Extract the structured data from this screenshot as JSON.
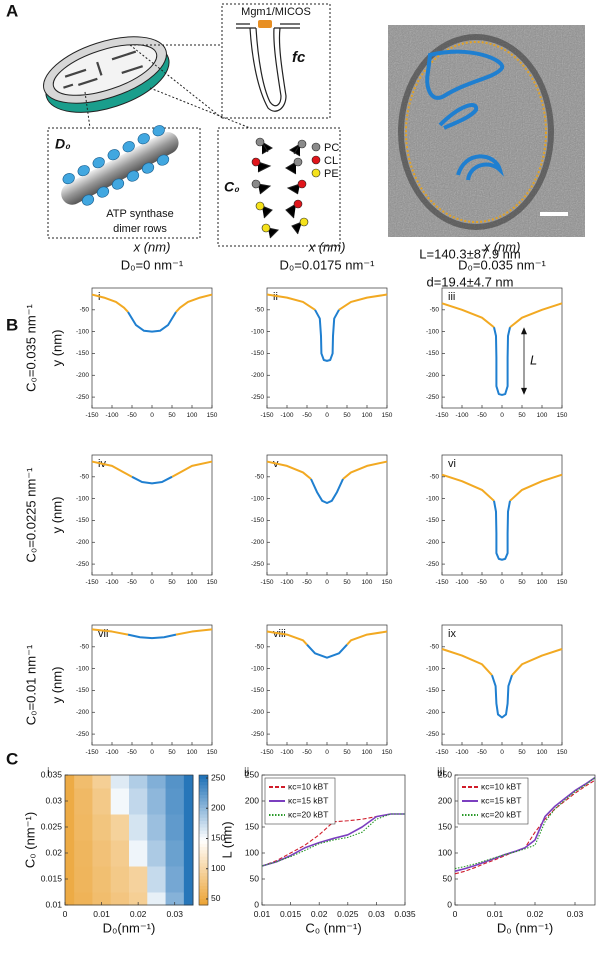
{
  "panel_a": {
    "label": "A",
    "fc_title": "Mgm1/MICOS",
    "fc": "fc",
    "d0": "D₀",
    "atp": [
      "ATP synthase",
      "dimer rows"
    ],
    "c0": "C₀",
    "lipids": [
      "PC",
      "CL",
      "PE"
    ],
    "stats": [
      "L=140.3±87.9 nm",
      "d=19.4±4.7 nm"
    ]
  },
  "panel_b": {
    "label": "B"
  },
  "panel_c": {
    "label": "C"
  },
  "chart_data": [
    {
      "type": "line",
      "panel": "i",
      "xlabel": "x (nm)",
      "title": "D₀=0 nm⁻¹",
      "ylabel": "y (nm)",
      "row_label": "C₀=0.035 nm⁻¹",
      "xlim": [
        -150,
        150
      ],
      "xticks": [
        -150,
        -100,
        -50,
        0,
        50,
        100,
        150
      ],
      "ylim": [
        -275,
        0
      ],
      "yticks": [
        -250,
        -200,
        -150,
        -100,
        -50
      ],
      "series": [
        {
          "color": "#f2a922",
          "x": [
            -150,
            -120,
            -90,
            -70,
            -60,
            null,
            60,
            70,
            90,
            120,
            150
          ],
          "values": [
            -15,
            -22,
            -32,
            -45,
            -55,
            null,
            -55,
            -45,
            -32,
            -22,
            -15
          ]
        },
        {
          "color": "#1f7fd0",
          "x": [
            -60,
            -40,
            -20,
            0,
            20,
            40,
            60
          ],
          "values": [
            -55,
            -85,
            -98,
            -100,
            -98,
            -85,
            -55
          ]
        }
      ]
    },
    {
      "type": "line",
      "panel": "ii",
      "xlabel": "x (nm)",
      "title": "D₀=0.0175 nm⁻¹",
      "xlim": [
        -150,
        150
      ],
      "xticks": [
        -150,
        -100,
        -50,
        0,
        50,
        100,
        150
      ],
      "ylim": [
        -275,
        0
      ],
      "yticks": [
        -250,
        -200,
        -150,
        -100,
        -50
      ],
      "series": [
        {
          "color": "#f2a922",
          "x": [
            -150,
            -100,
            -60,
            -30,
            null,
            30,
            60,
            100,
            150
          ],
          "values": [
            -15,
            -22,
            -32,
            -50,
            null,
            -50,
            -32,
            -22,
            -15
          ]
        },
        {
          "color": "#1f7fd0",
          "x": [
            -30,
            -18,
            -15,
            -14,
            -8,
            0,
            8,
            14,
            15,
            18,
            30
          ],
          "values": [
            -50,
            -70,
            -110,
            -150,
            -165,
            -167,
            -165,
            -150,
            -110,
            -70,
            -50
          ]
        }
      ]
    },
    {
      "type": "line",
      "panel": "iii",
      "xlabel": "x (nm)",
      "title": "D₀=0.035 nm⁻¹",
      "annotation": "L",
      "xlim": [
        -150,
        150
      ],
      "xticks": [
        -150,
        -100,
        -50,
        0,
        50,
        100,
        150
      ],
      "ylim": [
        -275,
        0
      ],
      "yticks": [
        -250,
        -200,
        -150,
        -100,
        -50
      ],
      "series": [
        {
          "color": "#f2a922",
          "x": [
            -150,
            -100,
            -50,
            -20,
            null,
            20,
            50,
            100,
            150
          ],
          "values": [
            -35,
            -50,
            -68,
            -90,
            null,
            -90,
            -68,
            -50,
            -35
          ]
        },
        {
          "color": "#1f7fd0",
          "x": [
            -20,
            -15,
            -14,
            -14,
            -8,
            0,
            8,
            14,
            14,
            15,
            20
          ],
          "values": [
            -90,
            -110,
            -160,
            -225,
            -243,
            -245,
            -243,
            -225,
            -160,
            -110,
            -90
          ]
        }
      ]
    },
    {
      "type": "line",
      "panel": "iv",
      "ylabel": "y (nm)",
      "row_label": "C₀=0.0225 nm⁻¹",
      "xlim": [
        -150,
        150
      ],
      "xticks": [
        -150,
        -100,
        -50,
        0,
        50,
        100,
        150
      ],
      "ylim": [
        -275,
        0
      ],
      "yticks": [
        -250,
        -200,
        -150,
        -100,
        -50
      ],
      "series": [
        {
          "color": "#f2a922",
          "x": [
            -150,
            -100,
            -70,
            -50,
            null,
            50,
            70,
            100,
            150
          ],
          "values": [
            -15,
            -25,
            -40,
            -50,
            null,
            -50,
            -40,
            -25,
            -15
          ]
        },
        {
          "color": "#1f7fd0",
          "x": [
            -50,
            -25,
            0,
            25,
            50
          ],
          "values": [
            -50,
            -62,
            -65,
            -62,
            -50
          ]
        }
      ]
    },
    {
      "type": "line",
      "panel": "v",
      "xlim": [
        -150,
        150
      ],
      "xticks": [
        -150,
        -100,
        -50,
        0,
        50,
        100,
        150
      ],
      "ylim": [
        -275,
        0
      ],
      "yticks": [
        -250,
        -200,
        -150,
        -100,
        -50
      ],
      "series": [
        {
          "color": "#f2a922",
          "x": [
            -150,
            -100,
            -60,
            -40,
            null,
            40,
            60,
            100,
            150
          ],
          "values": [
            -15,
            -25,
            -40,
            -55,
            null,
            -55,
            -40,
            -25,
            -15
          ]
        },
        {
          "color": "#1f7fd0",
          "x": [
            -40,
            -25,
            -12,
            0,
            12,
            25,
            40
          ],
          "values": [
            -55,
            -85,
            -105,
            -110,
            -105,
            -85,
            -55
          ]
        }
      ]
    },
    {
      "type": "line",
      "panel": "vi",
      "xlim": [
        -150,
        150
      ],
      "xticks": [
        -150,
        -100,
        -50,
        0,
        50,
        100,
        150
      ],
      "ylim": [
        -275,
        0
      ],
      "yticks": [
        -250,
        -200,
        -150,
        -100,
        -50
      ],
      "series": [
        {
          "color": "#f2a922",
          "x": [
            -150,
            -100,
            -50,
            -20,
            null,
            20,
            50,
            100,
            150
          ],
          "values": [
            -45,
            -60,
            -80,
            -105,
            null,
            -105,
            -80,
            -60,
            -45
          ]
        },
        {
          "color": "#1f7fd0",
          "x": [
            -20,
            -15,
            -14,
            -14,
            -8,
            0,
            8,
            14,
            14,
            15,
            20
          ],
          "values": [
            -105,
            -130,
            -180,
            -225,
            -238,
            -240,
            -238,
            -225,
            -180,
            -130,
            -105
          ]
        }
      ]
    },
    {
      "type": "line",
      "panel": "vii",
      "ylabel": "y (nm)",
      "row_label": "C₀=0.01 nm⁻¹",
      "xlim": [
        -150,
        150
      ],
      "xticks": [
        -150,
        -100,
        -50,
        0,
        50,
        100,
        150
      ],
      "ylim": [
        -275,
        0
      ],
      "yticks": [
        -250,
        -200,
        -150,
        -100,
        -50
      ],
      "series": [
        {
          "color": "#f2a922",
          "x": [
            -150,
            -100,
            -60,
            null,
            60,
            100,
            150
          ],
          "values": [
            -10,
            -15,
            -22,
            null,
            -22,
            -15,
            -10
          ]
        },
        {
          "color": "#1f7fd0",
          "x": [
            -60,
            -30,
            0,
            30,
            60
          ],
          "values": [
            -22,
            -28,
            -30,
            -28,
            -22
          ]
        }
      ]
    },
    {
      "type": "line",
      "panel": "viii",
      "xlim": [
        -150,
        150
      ],
      "xticks": [
        -150,
        -100,
        -50,
        0,
        50,
        100,
        150
      ],
      "ylim": [
        -275,
        0
      ],
      "yticks": [
        -250,
        -200,
        -150,
        -100,
        -50
      ],
      "series": [
        {
          "color": "#f2a922",
          "x": [
            -150,
            -100,
            -60,
            -50,
            null,
            50,
            60,
            100,
            150
          ],
          "values": [
            -15,
            -22,
            -35,
            -45,
            null,
            -45,
            -35,
            -22,
            -15
          ]
        },
        {
          "color": "#1f7fd0",
          "x": [
            -50,
            -30,
            0,
            30,
            50
          ],
          "values": [
            -45,
            -65,
            -75,
            -65,
            -45
          ]
        }
      ]
    },
    {
      "type": "line",
      "panel": "ix",
      "xlim": [
        -150,
        150
      ],
      "xticks": [
        -150,
        -100,
        -50,
        0,
        50,
        100,
        150
      ],
      "ylim": [
        -275,
        0
      ],
      "yticks": [
        -250,
        -200,
        -150,
        -100,
        -50
      ],
      "series": [
        {
          "color": "#f2a922",
          "x": [
            -150,
            -100,
            -50,
            -25,
            null,
            25,
            50,
            100,
            150
          ],
          "values": [
            -55,
            -70,
            -90,
            -115,
            null,
            -115,
            -90,
            -70,
            -55
          ]
        },
        {
          "color": "#1f7fd0",
          "x": [
            -25,
            -16,
            -14,
            -10,
            0,
            10,
            14,
            16,
            25
          ],
          "values": [
            -115,
            -140,
            -180,
            -205,
            -212,
            -205,
            -180,
            -140,
            -115
          ]
        }
      ]
    },
    {
      "type": "heatmap",
      "panel": "i",
      "xlabel": "D₀(nm⁻¹)",
      "ylabel": "C₀ (nm⁻¹)",
      "xlim": [
        0,
        0.035
      ],
      "xticks": [
        0,
        0.01,
        0.02,
        0.03
      ],
      "ylim": [
        0.01,
        0.035
      ],
      "yticks": [
        0.01,
        0.015,
        0.02,
        0.025,
        0.03,
        0.035
      ],
      "x": [
        0,
        0.005,
        0.01,
        0.015,
        0.02,
        0.025,
        0.03,
        0.035
      ],
      "y": [
        0.01,
        0.015,
        0.02,
        0.025,
        0.03,
        0.035
      ],
      "z": [
        [
          50,
          60,
          71,
          81,
          92,
          159,
          205,
          250
        ],
        [
          50,
          62,
          73,
          85,
          96,
          175,
          213,
          250
        ],
        [
          50,
          63,
          76,
          89,
          155,
          187,
          218,
          250
        ],
        [
          50,
          65,
          80,
          95,
          168,
          195,
          223,
          250
        ],
        [
          50,
          67,
          85,
          153,
          177,
          201,
          226,
          250
        ],
        [
          50,
          71,
          92,
          163,
          185,
          207,
          228,
          250
        ]
      ],
      "colormap": [
        "#eba232",
        "#ffffff",
        "#1c6fb6"
      ],
      "clim": [
        40,
        255
      ],
      "cticks": [
        50,
        100,
        150,
        200,
        250
      ]
    },
    {
      "type": "line",
      "panel": "ii",
      "xlabel": "C₀ (nm⁻¹)",
      "ylabel": "L (nm)",
      "legend": "upper left",
      "xlim": [
        0.01,
        0.035
      ],
      "xticks": [
        0.01,
        0.015,
        0.02,
        0.025,
        0.03,
        0.035
      ],
      "ylim": [
        0,
        250
      ],
      "yticks": [
        0,
        50,
        100,
        150,
        200,
        250
      ],
      "x": [
        0.01,
        0.0125,
        0.015,
        0.0175,
        0.02,
        0.0225,
        0.025,
        0.0275,
        0.03,
        0.0325,
        0.035
      ],
      "series": [
        {
          "name": "κc=10 kBT",
          "color": "#d01c2a",
          "dash": "dashed",
          "values": [
            75,
            85,
            100,
            115,
            135,
            160,
            162,
            165,
            170,
            175,
            175
          ]
        },
        {
          "name": "κc=15 kBT",
          "color": "#7b3fbf",
          "dash": "solid",
          "values": [
            75,
            83,
            95,
            110,
            120,
            128,
            135,
            150,
            170,
            175,
            175
          ]
        },
        {
          "name": "κc=20 kBT",
          "color": "#2a9a2a",
          "dash": "dotted",
          "values": [
            75,
            83,
            93,
            105,
            118,
            125,
            130,
            140,
            165,
            175,
            175
          ]
        }
      ]
    },
    {
      "type": "line",
      "panel": "iii",
      "xlabel": "D₀ (nm⁻¹)",
      "legend": "upper left",
      "xlim": [
        0,
        0.035
      ],
      "xticks": [
        0,
        0.01,
        0.02,
        0.03
      ],
      "ylim": [
        0,
        250
      ],
      "yticks": [
        0,
        50,
        100,
        150,
        200,
        250
      ],
      "x": [
        0,
        0.0025,
        0.005,
        0.0075,
        0.01,
        0.0125,
        0.015,
        0.0175,
        0.02,
        0.0225,
        0.025,
        0.0275,
        0.03,
        0.0325,
        0.035
      ],
      "series": [
        {
          "name": "κc=10 kBT",
          "color": "#d01c2a",
          "dash": "dashed",
          "values": [
            60,
            65,
            72,
            80,
            87,
            95,
            103,
            110,
            140,
            165,
            185,
            200,
            215,
            228,
            240
          ]
        },
        {
          "name": "κc=15 kBT",
          "color": "#7b3fbf",
          "dash": "solid",
          "values": [
            65,
            70,
            76,
            83,
            90,
            97,
            103,
            110,
            125,
            170,
            190,
            205,
            220,
            232,
            245
          ]
        },
        {
          "name": "κc=20 kBT",
          "color": "#2a9a2a",
          "dash": "dotted",
          "values": [
            70,
            74,
            79,
            85,
            91,
            97,
            102,
            108,
            115,
            160,
            185,
            202,
            218,
            230,
            245
          ]
        }
      ]
    }
  ]
}
